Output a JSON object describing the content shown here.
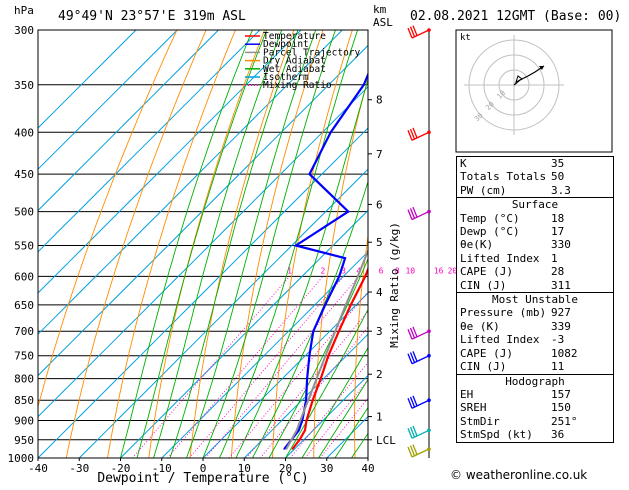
{
  "header": {
    "hpa_label": "hPa",
    "location": "49°49'N  23°57'E  319m  ASL",
    "km_label": "km",
    "asl_label": "ASL",
    "datetime": "02.08.2021  12GMT  (Base: 00)"
  },
  "legend": {
    "items": [
      {
        "label": "Temperature",
        "color": "#ff0000",
        "style": "solid"
      },
      {
        "label": "Dewpoint",
        "color": "#0000ff",
        "style": "solid"
      },
      {
        "label": "Parcel Trajectory",
        "color": "#909090",
        "style": "solid"
      },
      {
        "label": "Dry Adiabat",
        "color": "#ff8c00",
        "style": "solid"
      },
      {
        "label": "Wet Adiabat",
        "color": "#00b000",
        "style": "solid"
      },
      {
        "label": "Isotherm",
        "color": "#00a0e0",
        "style": "solid"
      },
      {
        "label": "Mixing Ratio",
        "color": "#ff00c0",
        "style": "dotted"
      }
    ]
  },
  "chart_data": {
    "type": "skew-t",
    "xlabel": "Dewpoint / Temperature (°C)",
    "ylabel_right": "Mixing Ratio (g/kg)",
    "pressure_ticks": [
      300,
      350,
      400,
      450,
      500,
      550,
      600,
      650,
      700,
      750,
      800,
      850,
      900,
      950,
      1000
    ],
    "temperature_ticks": [
      -40,
      -30,
      -20,
      -10,
      0,
      10,
      20,
      30,
      40
    ],
    "xlim": [
      -40,
      40
    ],
    "ylim": [
      1000,
      300
    ],
    "km_ticks": [
      {
        "label": "8",
        "p": 365
      },
      {
        "label": "7",
        "p": 425
      },
      {
        "label": "6",
        "p": 490
      },
      {
        "label": "5",
        "p": 545
      },
      {
        "label": "4",
        "p": 627
      },
      {
        "label": "3",
        "p": 700
      },
      {
        "label": "2",
        "p": 790
      },
      {
        "label": "1",
        "p": 890
      },
      {
        "label": "LCL",
        "p": 950
      }
    ],
    "mixing_ratio_labels": [
      "1",
      "2",
      "3",
      "4",
      "6",
      "8",
      "10",
      "16",
      "20",
      "25"
    ],
    "mixing_ratio_values": [
      1,
      2,
      3,
      4,
      6,
      8,
      10,
      16,
      20,
      25
    ],
    "series": [
      {
        "name": "Temperature",
        "color": "#ff0000",
        "points": [
          [
            975,
            19.5
          ],
          [
            950,
            19.0
          ],
          [
            925,
            18.0
          ],
          [
            900,
            16.0
          ],
          [
            850,
            12.6
          ],
          [
            800,
            9.3
          ],
          [
            750,
            5.6
          ],
          [
            700,
            2.2
          ],
          [
            650,
            -1.3
          ],
          [
            600,
            -4.7
          ],
          [
            550,
            -9.2
          ],
          [
            500,
            -14.3
          ],
          [
            450,
            -20.4
          ],
          [
            400,
            -27.4
          ],
          [
            350,
            -35.3
          ],
          [
            300,
            -44.5
          ]
        ]
      },
      {
        "name": "Dewpoint",
        "color": "#0000ff",
        "points": [
          [
            975,
            17.5
          ],
          [
            950,
            17.0
          ],
          [
            925,
            16.5
          ],
          [
            900,
            15.0
          ],
          [
            850,
            11.0
          ],
          [
            800,
            6.0
          ],
          [
            750,
            1.0
          ],
          [
            700,
            -4.0
          ],
          [
            650,
            -7.5
          ],
          [
            600,
            -11.0
          ],
          [
            570,
            -14.0
          ],
          [
            550,
            -29.0
          ],
          [
            500,
            -24.5
          ],
          [
            450,
            -43.0
          ],
          [
            400,
            -48.0
          ],
          [
            350,
            -51.5
          ],
          [
            320,
            -56.0
          ],
          [
            300,
            -60.0
          ]
        ]
      },
      {
        "name": "Parcel Trajectory",
        "color": "#909090",
        "points": [
          [
            975,
            18.0
          ],
          [
            950,
            17.0
          ],
          [
            925,
            16.0
          ],
          [
            900,
            14.5
          ],
          [
            850,
            11.5
          ],
          [
            800,
            8.3
          ],
          [
            750,
            4.9
          ],
          [
            700,
            1.3
          ],
          [
            650,
            -2.5
          ],
          [
            600,
            -6.5
          ],
          [
            550,
            -11.0
          ],
          [
            500,
            -16.0
          ],
          [
            450,
            -21.5
          ],
          [
            400,
            -28.0
          ],
          [
            350,
            -36.0
          ],
          [
            300,
            -45.5
          ]
        ]
      }
    ],
    "wind_barbs": [
      {
        "p": 300,
        "color": "#ff0000"
      },
      {
        "p": 400,
        "color": "#ff0000"
      },
      {
        "p": 500,
        "color": "#c000c0"
      },
      {
        "p": 700,
        "color": "#c000c0"
      },
      {
        "p": 750,
        "color": "#0000ff"
      },
      {
        "p": 850,
        "color": "#0000ff"
      },
      {
        "p": 925,
        "color": "#00b0b0"
      },
      {
        "p": 975,
        "color": "#a0a000"
      }
    ]
  },
  "hodograph": {
    "label": "kt",
    "ring_labels": [
      "10",
      "20",
      "30"
    ]
  },
  "indices": {
    "rows": [
      {
        "label": "K",
        "value": "35"
      },
      {
        "label": "Totals Totals",
        "value": "50"
      },
      {
        "label": "PW (cm)",
        "value": "3.3"
      }
    ]
  },
  "surface": {
    "title": "Surface",
    "rows": [
      {
        "label": "Temp (°C)",
        "value": "18"
      },
      {
        "label": "Dewp (°C)",
        "value": "17"
      },
      {
        "label": "θe(K)",
        "value": "330"
      },
      {
        "label": "Lifted Index",
        "value": "1"
      },
      {
        "label": "CAPE (J)",
        "value": "28"
      },
      {
        "label": "CIN (J)",
        "value": "311"
      }
    ]
  },
  "most_unstable": {
    "title": "Most Unstable",
    "rows": [
      {
        "label": "Pressure (mb)",
        "value": "927"
      },
      {
        "label": "θe (K)",
        "value": "339"
      },
      {
        "label": "Lifted Index",
        "value": "-3"
      },
      {
        "label": "CAPE (J)",
        "value": "1082"
      },
      {
        "label": "CIN (J)",
        "value": "11"
      }
    ]
  },
  "hodograph_indices": {
    "title": "Hodograph",
    "rows": [
      {
        "label": "EH",
        "value": "157"
      },
      {
        "label": "SREH",
        "value": "150"
      },
      {
        "label": "StmDir",
        "value": "251°"
      },
      {
        "label": "StmSpd (kt)",
        "value": "36"
      }
    ]
  },
  "credit": "© weatheronline.co.uk"
}
